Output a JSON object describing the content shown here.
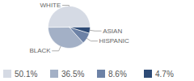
{
  "chart_data": {
    "type": "pie",
    "categories": [
      "WHITE",
      "BLACK",
      "HISPANIC",
      "ASIAN"
    ],
    "values": [
      50.1,
      36.5,
      8.6,
      4.7
    ],
    "value_labels": [
      "50.1%",
      "36.5%",
      "8.6%",
      "4.7%"
    ],
    "colors": [
      "#d5dae4",
      "#a3b0c6",
      "#6d82a6",
      "#2e4b76"
    ],
    "legend": "bottom"
  }
}
